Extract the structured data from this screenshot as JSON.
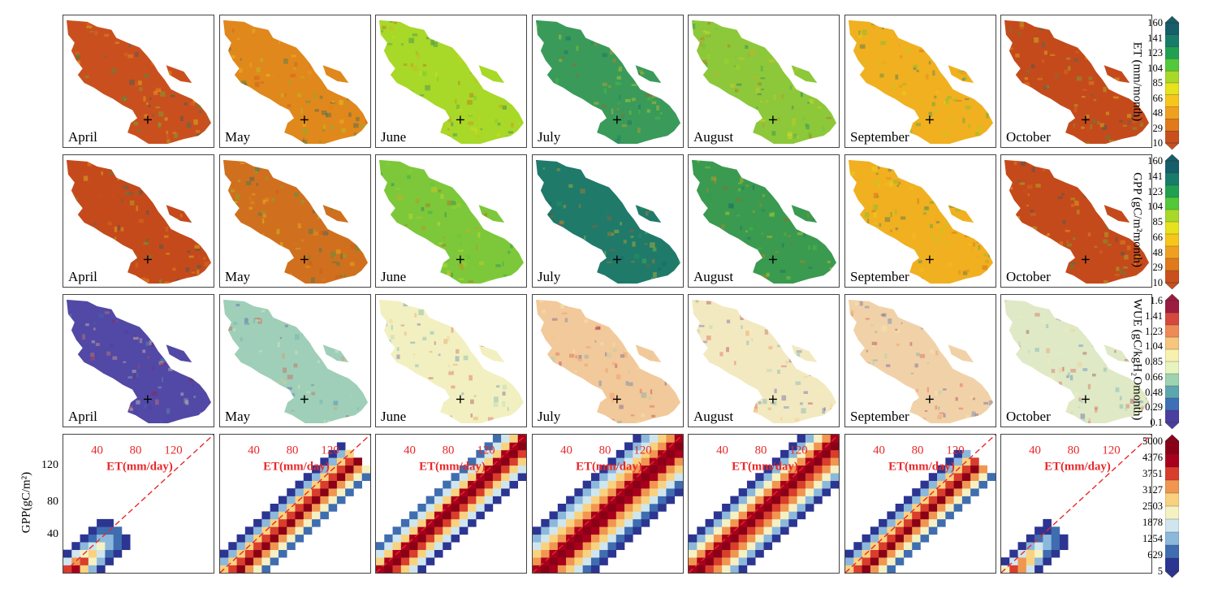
{
  "months": [
    "April",
    "May",
    "June",
    "July",
    "August",
    "September",
    "October"
  ],
  "rows": [
    {
      "variable": "ET",
      "colorbar_label": "ET (mm/month)",
      "ticks": [
        "160",
        "141",
        "123",
        "104",
        "85",
        "66",
        "48",
        "29",
        "10"
      ]
    },
    {
      "variable": "GPP",
      "colorbar_label": "GPP (gC/m²month)",
      "ticks": [
        "160",
        "141",
        "123",
        "104",
        "85",
        "66",
        "48",
        "29",
        "10"
      ]
    },
    {
      "variable": "WUE",
      "colorbar_label": "WUE (gC/kgH₂Omonth)",
      "ticks": [
        "1.6",
        "1.41",
        "1.23",
        "1.04",
        "0.85",
        "0.66",
        "0.48",
        "0.29",
        "0.1"
      ]
    }
  ],
  "density_row": {
    "x_label": "ET(mm/day)",
    "y_label": "GPP(gC/m²)",
    "x_ticks": [
      "40",
      "80",
      "120"
    ],
    "y_ticks": [
      "120",
      "80",
      "40"
    ],
    "colorbar_ticks": [
      "5000",
      "4376",
      "3751",
      "3127",
      "2503",
      "1878",
      "1254",
      "629",
      "5"
    ]
  },
  "colors": {
    "et_gpp_scale": [
      "#c9501e",
      "#e07a1a",
      "#f0a020",
      "#f6c61c",
      "#e6e21e",
      "#a8d828",
      "#52c83a",
      "#21a052",
      "#187c6a",
      "#165f6a"
    ],
    "wue_scale": [
      "#4a3fa0",
      "#3d70b6",
      "#5da6b0",
      "#9fd2b0",
      "#e8f4c0",
      "#f7f1b0",
      "#f6c57e",
      "#ee8a55",
      "#d6473e",
      "#9c1c3f"
    ],
    "density_scale": [
      "#2c3591",
      "#3f6db0",
      "#8cb8dc",
      "#cfe6ef",
      "#f5f1c3",
      "#f9d27f",
      "#f09651",
      "#d93d2c",
      "#a8001c",
      "#8a0016"
    ],
    "red_annotation": "#e8282a"
  },
  "month_colors": {
    "ET": [
      "#c9501e",
      "#e0881c",
      "#a8d828",
      "#3a9a5a",
      "#8cc83a",
      "#f0b020",
      "#c44a1c"
    ],
    "GPP": [
      "#c44a1c",
      "#d0701e",
      "#7cc83a",
      "#1f7a6a",
      "#3a9a50",
      "#f0b020",
      "#c44a1c"
    ],
    "WUE": [
      "#5248a6",
      "#9fcfb8",
      "#f2f0c0",
      "#f2c99a",
      "#f3e9c0",
      "#f1d2a8",
      "#dfe9c6"
    ]
  }
}
